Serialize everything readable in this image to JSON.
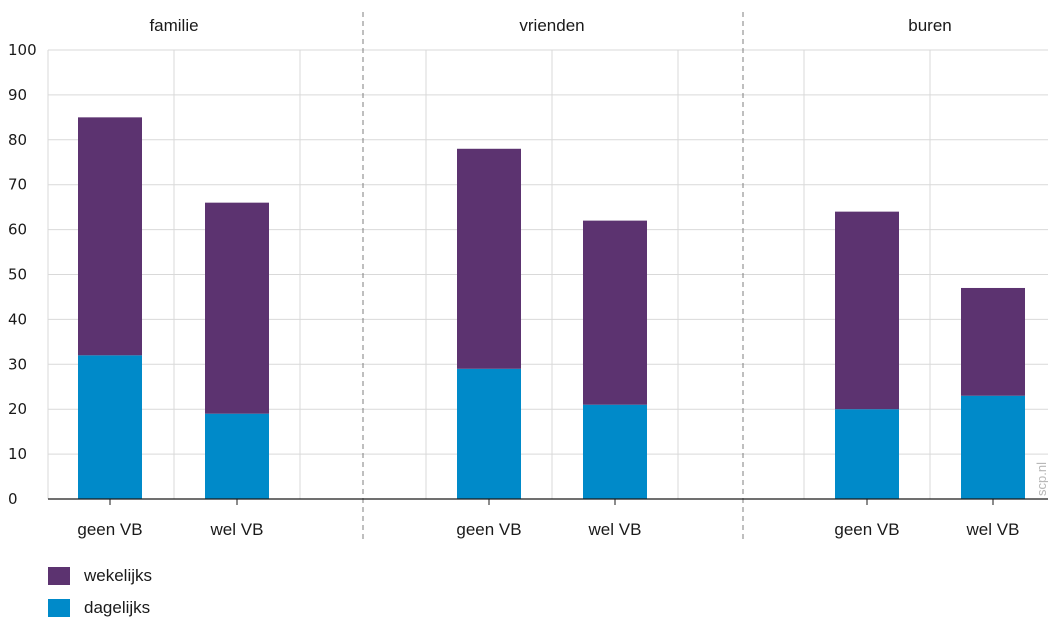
{
  "chart_data": {
    "type": "bar",
    "stacked": true,
    "groups": [
      "familie",
      "vrienden",
      "buren"
    ],
    "categories": [
      "geen VB",
      "wel VB"
    ],
    "y_ticks": [
      "0",
      "10",
      "20",
      "30",
      "40",
      "50",
      "60",
      "70",
      "80",
      "90",
      "100"
    ],
    "ylim": [
      0,
      100
    ],
    "grid": true,
    "legend_position": "bottom-left",
    "series": [
      {
        "name": "dagelijks",
        "color": "#008ac9",
        "values": [
          [
            32,
            19
          ],
          [
            29,
            21
          ],
          [
            20,
            23
          ]
        ]
      },
      {
        "name": "wekelijks",
        "color": "#5c3370",
        "values": [
          [
            53,
            47
          ],
          [
            49,
            41
          ],
          [
            44,
            24
          ]
        ]
      }
    ],
    "legend": [
      {
        "label": "wekelijks",
        "color": "#5c3370"
      },
      {
        "label": "dagelijks",
        "color": "#008ac9"
      }
    ]
  },
  "watermark": "scp.nl"
}
